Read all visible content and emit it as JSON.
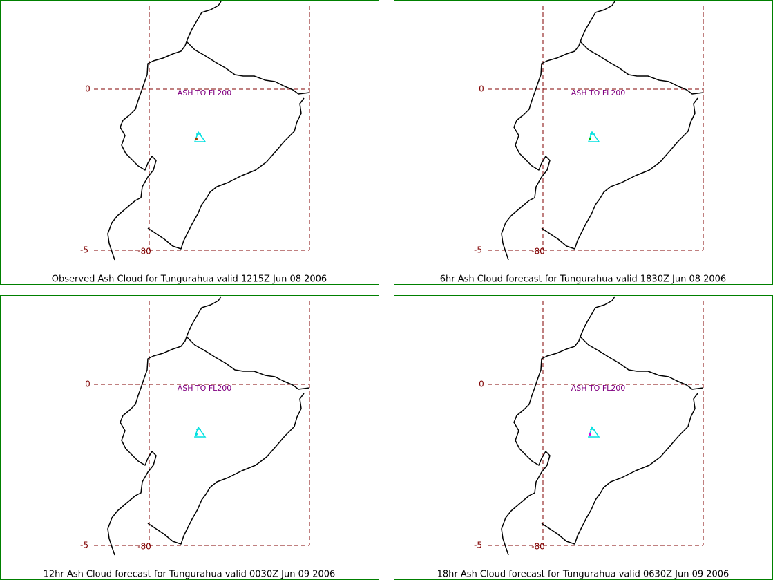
{
  "panels": [
    {
      "title": "Observed Ash Cloud for Tungurahua valid 1215Z Jun 08 2006",
      "annotation": "ASH TO FL200",
      "labels": [
        "0",
        "-5",
        "-80"
      ]
    },
    {
      "title": "6hr Ash Cloud forecast for Tungurahua valid 1830Z Jun 08 2006",
      "annotation": "ASH TO FL200",
      "labels": [
        "0",
        "-5",
        "-80"
      ]
    },
    {
      "title": "12hr Ash Cloud forecast for Tungurahua valid 0030Z Jun 09 2006",
      "annotation": "ASH TO FL200",
      "labels": [
        "0",
        "-5",
        "-80"
      ]
    },
    {
      "title": "18hr Ash Cloud forecast for Tungurahua valid 0630Z Jun 09 2006",
      "annotation": "ASH TO FL200",
      "labels": [
        "0",
        "-5",
        "-80"
      ]
    }
  ]
}
